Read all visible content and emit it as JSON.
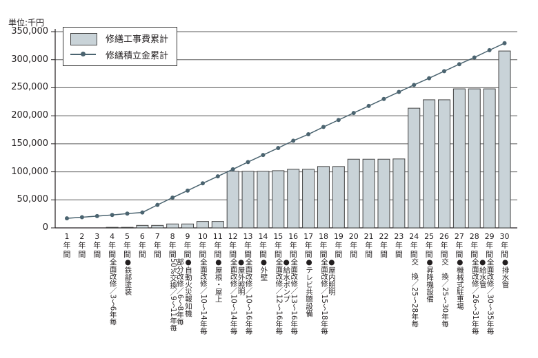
{
  "chart_data": {
    "type": "bar",
    "title": "",
    "unit_label": "単位:千円",
    "xlabel": "",
    "ylabel": "単位:千円",
    "ylim": [
      0,
      350000
    ],
    "yticks": [
      "0",
      "50,000",
      "100,000",
      "150,000",
      "200,000",
      "250,000",
      "300,000",
      "350,000"
    ],
    "grid": true,
    "legend_position": "top-left",
    "categories": [
      "1年間",
      "2年間",
      "3年間",
      "4年間",
      "5年間",
      "6年間",
      "7年間",
      "8年間",
      "9年間",
      "10年間",
      "11年間",
      "12年間",
      "13年間",
      "14年間",
      "15年間",
      "16年間",
      "17年間",
      "18年間",
      "19年間",
      "20年間",
      "21年間",
      "22年間",
      "23年間",
      "24年間",
      "25年間",
      "26年間",
      "27年間",
      "28年間",
      "29年間",
      "30年間"
    ],
    "series": [
      {
        "name": "修繕工事費累計",
        "type": "bar",
        "color": "#c9d3d8",
        "values": [
          0,
          0,
          0,
          1000,
          1000,
          4500,
          4500,
          7000,
          7000,
          11500,
          11500,
          101000,
          101000,
          101000,
          102000,
          104500,
          104500,
          109500,
          109500,
          122500,
          122500,
          122500,
          123000,
          213500,
          228500,
          228500,
          248000,
          248000,
          248000,
          315500
        ]
      },
      {
        "name": "修繕積立金累計",
        "type": "line",
        "color": "#4b6470",
        "values": [
          17000,
          19000,
          21000,
          23000,
          25500,
          27500,
          41000,
          54000,
          66500,
          79500,
          92000,
          104500,
          117500,
          130000,
          142500,
          155500,
          167000,
          180000,
          192500,
          205000,
          217500,
          230000,
          242500,
          255000,
          267000,
          279500,
          292000,
          304000,
          317000,
          329500
        ]
      }
    ],
    "annotations": [
      {
        "x": 4,
        "lines": [
          "全面改修／3～6年毎"
        ]
      },
      {
        "x": 5,
        "lines": [
          "●鉄部塗装"
        ]
      },
      {
        "x": 8,
        "lines": [
          "50%交換／9～11年毎"
        ]
      },
      {
        "x": 9,
        "lines": [
          "●自動火災報知機",
          "部分改修／6～8年毎"
        ]
      },
      {
        "x": 10,
        "lines": [
          "全面改修／10～14年毎"
        ]
      },
      {
        "x": 11,
        "lines": [
          "●屋根・屋上"
        ]
      },
      {
        "x": 12,
        "lines": [
          "全面改修／10～14年毎"
        ]
      },
      {
        "x": 12.5,
        "lines": [
          "●屋外照明"
        ]
      },
      {
        "x": 13,
        "lines": [
          "全面改修／10～16年毎"
        ]
      },
      {
        "x": 14,
        "lines": [
          "●外壁"
        ]
      },
      {
        "x": 15,
        "lines": [
          "全面改修／12～16年毎"
        ]
      },
      {
        "x": 15.5,
        "lines": [
          "●給水ポンプ"
        ]
      },
      {
        "x": 16,
        "lines": [
          "全面改修／13～16年毎"
        ]
      },
      {
        "x": 17,
        "lines": [
          "●テレビ共聴設備"
        ]
      },
      {
        "x": 18,
        "lines": [
          "全面改修／15～18年毎"
        ]
      },
      {
        "x": 18.5,
        "lines": [
          "●屋内照明"
        ]
      },
      {
        "x": 24,
        "lines": [
          "交　換／25～28年毎"
        ]
      },
      {
        "x": 25,
        "lines": [
          "●昇降機設備"
        ]
      },
      {
        "x": 26,
        "lines": [
          "交　換／25～30年毎"
        ]
      },
      {
        "x": 27,
        "lines": [
          "●機械式駐車場"
        ]
      },
      {
        "x": 28,
        "lines": [
          "全面改修／26～31年毎"
        ]
      },
      {
        "x": 28.5,
        "lines": [
          "●給水管"
        ]
      },
      {
        "x": 29,
        "lines": [
          "全面改修／30～35年毎"
        ]
      },
      {
        "x": 30,
        "lines": [
          "●排水管"
        ]
      }
    ]
  }
}
